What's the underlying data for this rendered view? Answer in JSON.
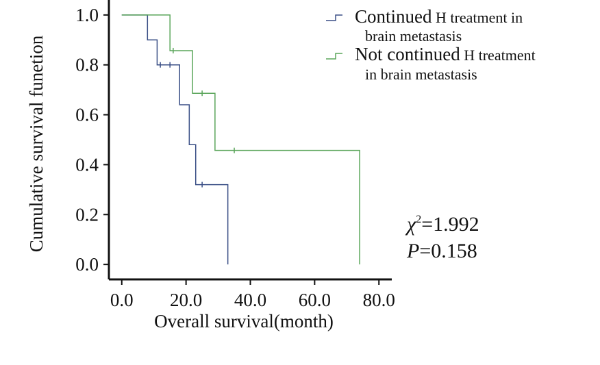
{
  "chart_data": {
    "type": "line",
    "subtype": "kaplan-meier",
    "title": "",
    "xlabel": "Overall survival(month)",
    "ylabel": "Cumulative survival funetion",
    "xlim": [
      -4,
      84
    ],
    "ylim": [
      -0.06,
      1.06
    ],
    "x_ticks": [
      0,
      20,
      40,
      60,
      80
    ],
    "x_tick_labels": [
      "0.0",
      "20.0",
      "40.0",
      "60.0",
      "80.0"
    ],
    "y_ticks": [
      0,
      0.2,
      0.4,
      0.6,
      0.8,
      1.0
    ],
    "y_tick_labels": [
      "0.0",
      "0.2",
      "0.4",
      "0.6",
      "0.8",
      "1.0"
    ],
    "legend_position": "top-right",
    "series": [
      {
        "name": "Continued H treatment in brain metastasis",
        "legend_line1_big": "Continued",
        "legend_line1_small": " H treatment in",
        "legend_line2": "brain metastasis",
        "color": "#3a4f86",
        "steps": [
          [
            0,
            1.0
          ],
          [
            8,
            0.9
          ],
          [
            11,
            0.8
          ],
          [
            18,
            0.64
          ],
          [
            21,
            0.48
          ],
          [
            23,
            0.32
          ],
          [
            33,
            0.0
          ]
        ],
        "end_x": 33,
        "censored": [
          [
            12,
            0.8
          ],
          [
            15,
            0.8
          ],
          [
            25,
            0.32
          ]
        ]
      },
      {
        "name": "Not continued H treatment in brain metastasis",
        "legend_line1_big": "Not continued",
        "legend_line1_small": " H treatment",
        "legend_line2": "in brain metastasis",
        "color": "#5aa55a",
        "steps": [
          [
            0,
            1.0
          ],
          [
            15,
            0.857
          ],
          [
            22,
            0.686
          ],
          [
            29,
            0.457
          ],
          [
            74,
            0.0
          ]
        ],
        "end_x": 74,
        "censored": [
          [
            16,
            0.857
          ],
          [
            25,
            0.686
          ],
          [
            35,
            0.457
          ]
        ]
      }
    ],
    "annotations": {
      "chi_symbol": "χ",
      "chi_superscript": "2",
      "chi_value": "=1.992",
      "p_symbol": "P",
      "p_value": "=0.158"
    }
  }
}
